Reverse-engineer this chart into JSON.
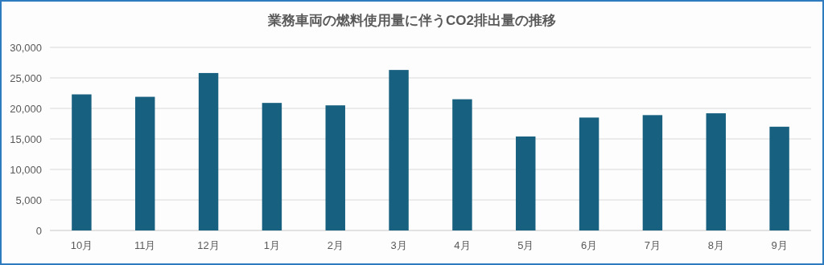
{
  "chart_data": {
    "type": "bar",
    "title": "業務車両の燃料使用量に伴うCO2排出量の推移",
    "categories": [
      "10月",
      "11月",
      "12月",
      "1月",
      "2月",
      "3月",
      "4月",
      "5月",
      "6月",
      "7月",
      "8月",
      "9月"
    ],
    "series": [
      {
        "color": "#17607f",
        "values": [
          22300,
          21900,
          25800,
          20900,
          20500,
          26300,
          21500,
          15400,
          18500,
          18900,
          19200,
          17000
        ]
      }
    ],
    "ylim": [
      0,
      30000
    ],
    "yticks": [
      {
        "value": 0,
        "label": "0"
      },
      {
        "value": 5000,
        "label": "5,000"
      },
      {
        "value": 10000,
        "label": "10,000"
      },
      {
        "value": 15000,
        "label": "15,000"
      },
      {
        "value": 20000,
        "label": "20,000"
      },
      {
        "value": 25000,
        "label": "25,000"
      },
      {
        "value": 30000,
        "label": "30,000"
      }
    ],
    "grid": "y"
  }
}
